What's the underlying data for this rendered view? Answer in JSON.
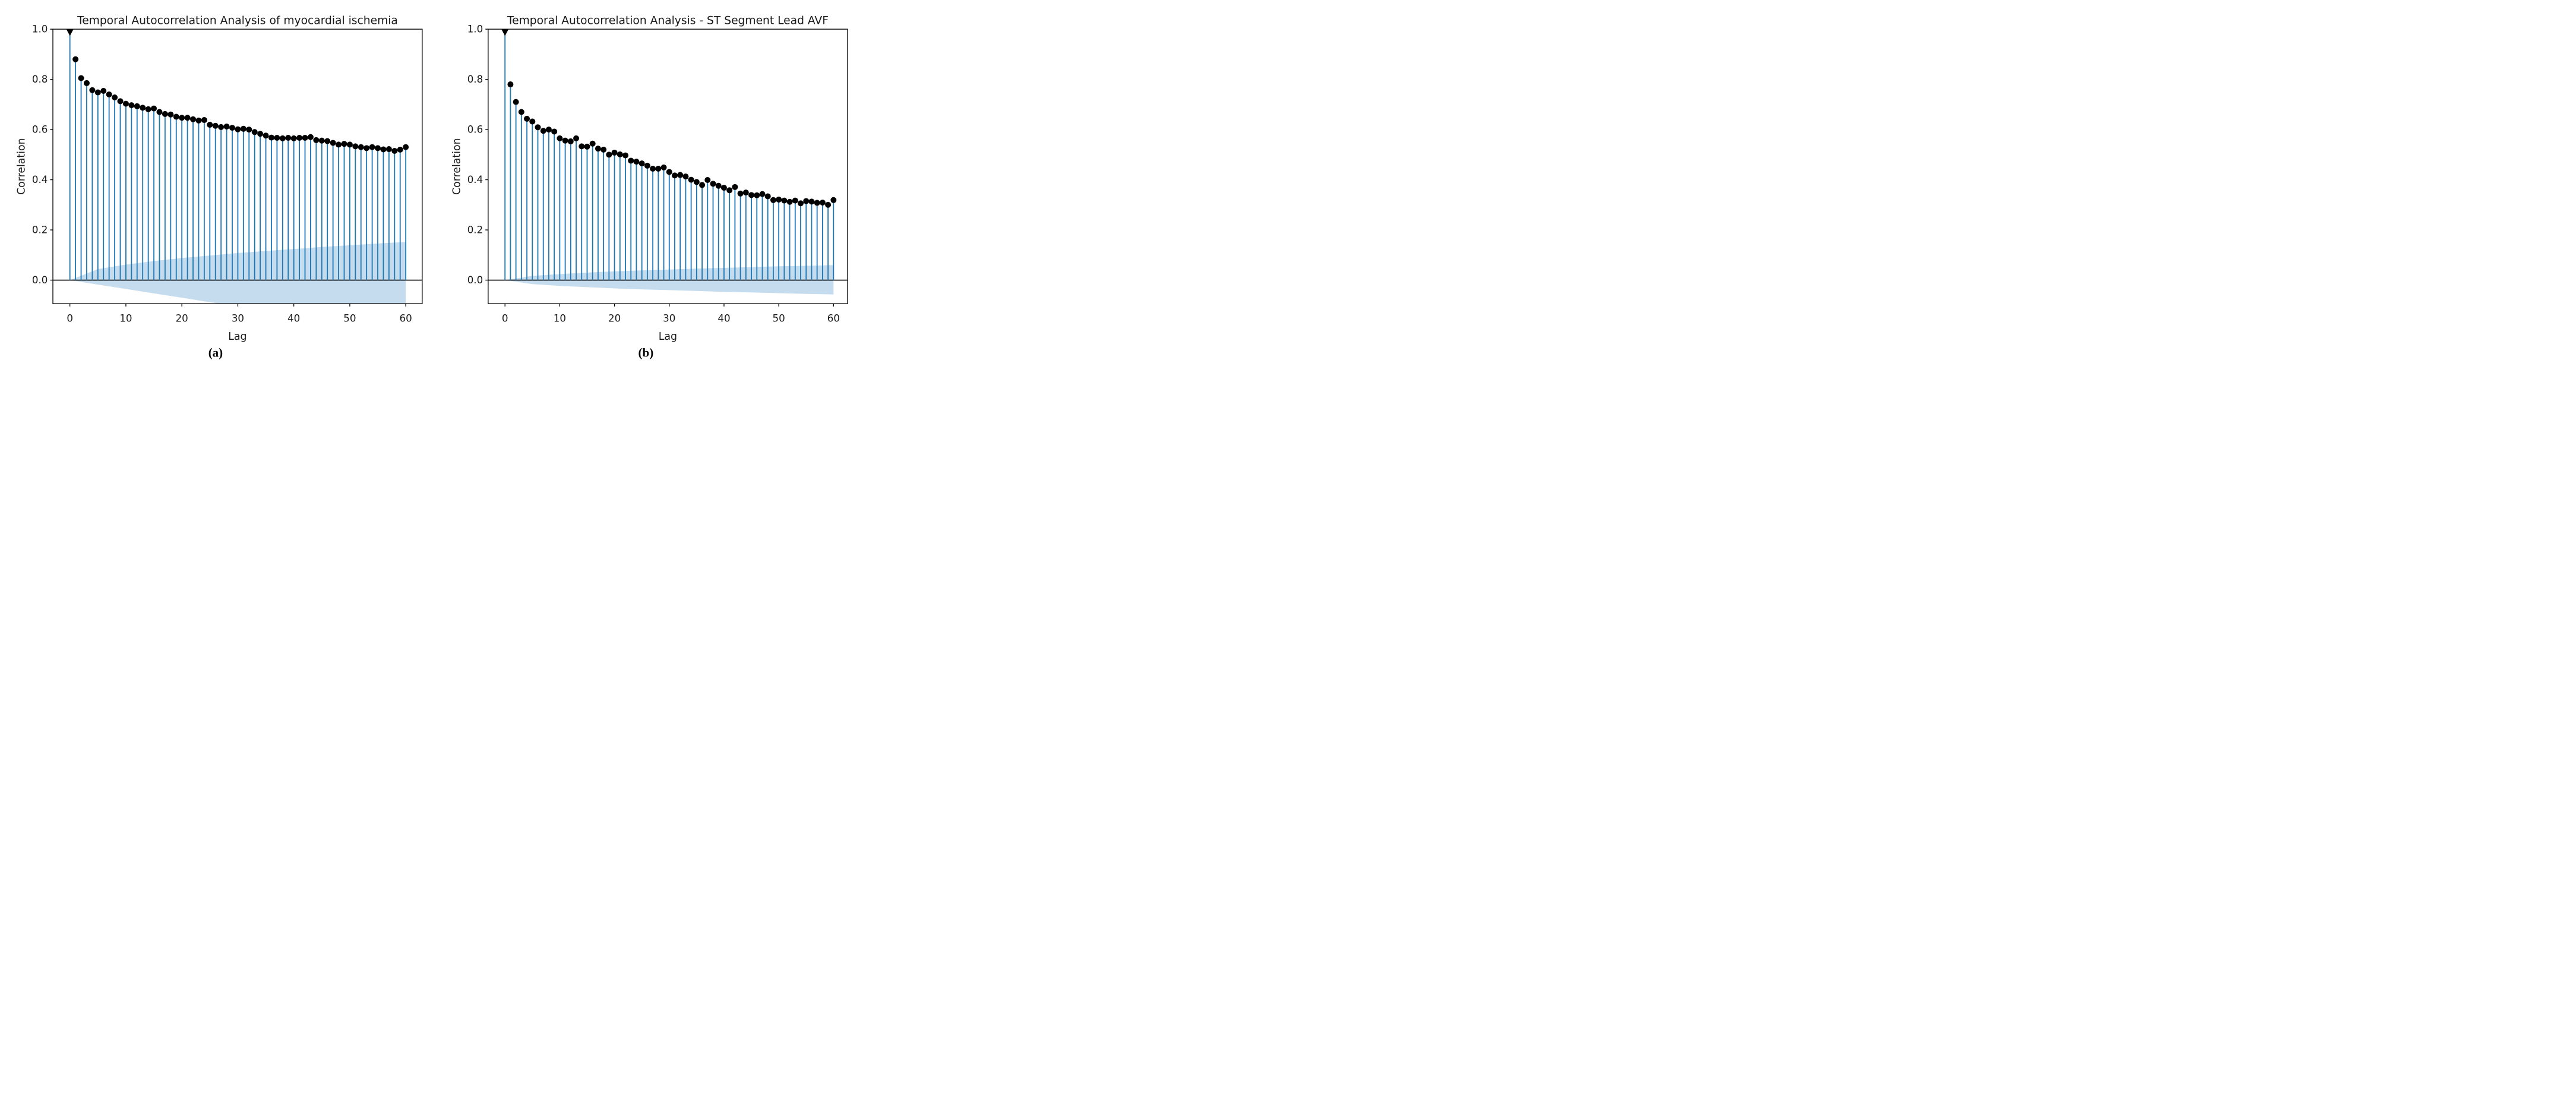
{
  "figure": {
    "captions": {
      "a": "(a)",
      "b": "(b)"
    },
    "colors": {
      "stem": "#1f77b4",
      "marker": "#000000",
      "band": "#c4dcee",
      "axis": "#000000",
      "zero_line": "#000000",
      "text": "#1a1a1a",
      "background": "#ffffff"
    }
  },
  "chart_data": [
    {
      "type": "stem",
      "title": "Temporal Autocorrelation Analysis of myocardial ischemia",
      "xlabel": "Lag",
      "ylabel": "Correlation",
      "caption": "(a)",
      "grid": false,
      "legend": null,
      "xticks": [
        0,
        10,
        20,
        30,
        40,
        50,
        60
      ],
      "yticks": [
        0.0,
        0.2,
        0.4,
        0.6,
        0.8,
        1.0
      ],
      "xlim": [
        -3,
        63
      ],
      "ylim": [
        -0.094,
        1.0
      ],
      "lags": [
        0,
        1,
        2,
        3,
        4,
        5,
        6,
        7,
        8,
        9,
        10,
        11,
        12,
        13,
        14,
        15,
        16,
        17,
        18,
        19,
        20,
        21,
        22,
        23,
        24,
        25,
        26,
        27,
        28,
        29,
        30,
        31,
        32,
        33,
        34,
        35,
        36,
        37,
        38,
        39,
        40,
        41,
        42,
        43,
        44,
        45,
        46,
        47,
        48,
        49,
        50,
        51,
        52,
        53,
        54,
        55,
        56,
        57,
        58,
        59,
        60
      ],
      "values": [
        1.0,
        0.88,
        0.805,
        0.785,
        0.757,
        0.748,
        0.754,
        0.74,
        0.728,
        0.713,
        0.703,
        0.697,
        0.693,
        0.687,
        0.681,
        0.684,
        0.67,
        0.662,
        0.66,
        0.651,
        0.647,
        0.647,
        0.641,
        0.636,
        0.638,
        0.619,
        0.615,
        0.61,
        0.612,
        0.607,
        0.601,
        0.603,
        0.6,
        0.59,
        0.583,
        0.576,
        0.568,
        0.567,
        0.565,
        0.567,
        0.565,
        0.567,
        0.567,
        0.57,
        0.558,
        0.556,
        0.554,
        0.547,
        0.54,
        0.543,
        0.54,
        0.533,
        0.53,
        0.526,
        0.53,
        0.526,
        0.521,
        0.522,
        0.515,
        0.52,
        0.53
      ],
      "conf_band": {
        "lags": [
          0,
          5,
          10,
          15,
          20,
          25,
          30,
          35,
          40,
          45,
          50,
          55,
          60
        ],
        "upper": [
          0,
          0.044,
          0.062,
          0.076,
          0.088,
          0.098,
          0.108,
          0.116,
          0.124,
          0.132,
          0.139,
          0.146,
          0.152
        ],
        "lower": [
          0,
          -0.018,
          -0.035,
          -0.053,
          -0.07,
          -0.088,
          -0.105,
          -0.123,
          -0.14,
          -0.158,
          -0.175,
          -0.193,
          -0.21
        ]
      }
    },
    {
      "type": "stem",
      "title": "Temporal Autocorrelation Analysis - ST Segment Lead AVF",
      "xlabel": "Lag",
      "ylabel": "Correlation",
      "caption": "(b)",
      "grid": false,
      "legend": null,
      "xticks": [
        0,
        10,
        20,
        30,
        40,
        50,
        60
      ],
      "yticks": [
        0.0,
        0.2,
        0.4,
        0.6,
        0.8,
        1.0
      ],
      "xlim": [
        -3,
        63
      ],
      "ylim": [
        -0.094,
        1.0
      ],
      "lags": [
        0,
        1,
        2,
        3,
        4,
        5,
        6,
        7,
        8,
        9,
        10,
        11,
        12,
        13,
        14,
        15,
        16,
        17,
        18,
        19,
        20,
        21,
        22,
        23,
        24,
        25,
        26,
        27,
        28,
        29,
        30,
        31,
        32,
        33,
        34,
        35,
        36,
        37,
        38,
        39,
        40,
        41,
        42,
        43,
        44,
        45,
        46,
        47,
        48,
        49,
        50,
        51,
        52,
        53,
        54,
        55,
        56,
        57,
        58,
        59,
        60
      ],
      "values": [
        1.0,
        0.78,
        0.71,
        0.67,
        0.643,
        0.632,
        0.609,
        0.595,
        0.6,
        0.592,
        0.565,
        0.556,
        0.553,
        0.565,
        0.533,
        0.532,
        0.544,
        0.524,
        0.52,
        0.5,
        0.508,
        0.501,
        0.497,
        0.476,
        0.472,
        0.465,
        0.456,
        0.444,
        0.444,
        0.449,
        0.431,
        0.417,
        0.419,
        0.413,
        0.4,
        0.391,
        0.379,
        0.399,
        0.384,
        0.376,
        0.368,
        0.358,
        0.371,
        0.345,
        0.349,
        0.339,
        0.338,
        0.343,
        0.334,
        0.319,
        0.321,
        0.317,
        0.312,
        0.317,
        0.306,
        0.315,
        0.313,
        0.308,
        0.309,
        0.3,
        0.319
      ],
      "conf_band": {
        "lags": [
          0,
          5,
          10,
          15,
          20,
          25,
          30,
          35,
          40,
          45,
          50,
          55,
          60
        ],
        "upper": [
          0,
          0.017,
          0.024,
          0.03,
          0.035,
          0.039,
          0.042,
          0.046,
          0.049,
          0.052,
          0.055,
          0.057,
          0.06
        ],
        "lower": [
          0,
          -0.016,
          -0.023,
          -0.028,
          -0.033,
          -0.037,
          -0.04,
          -0.043,
          -0.047,
          -0.049,
          -0.052,
          -0.055,
          -0.057
        ]
      }
    }
  ]
}
